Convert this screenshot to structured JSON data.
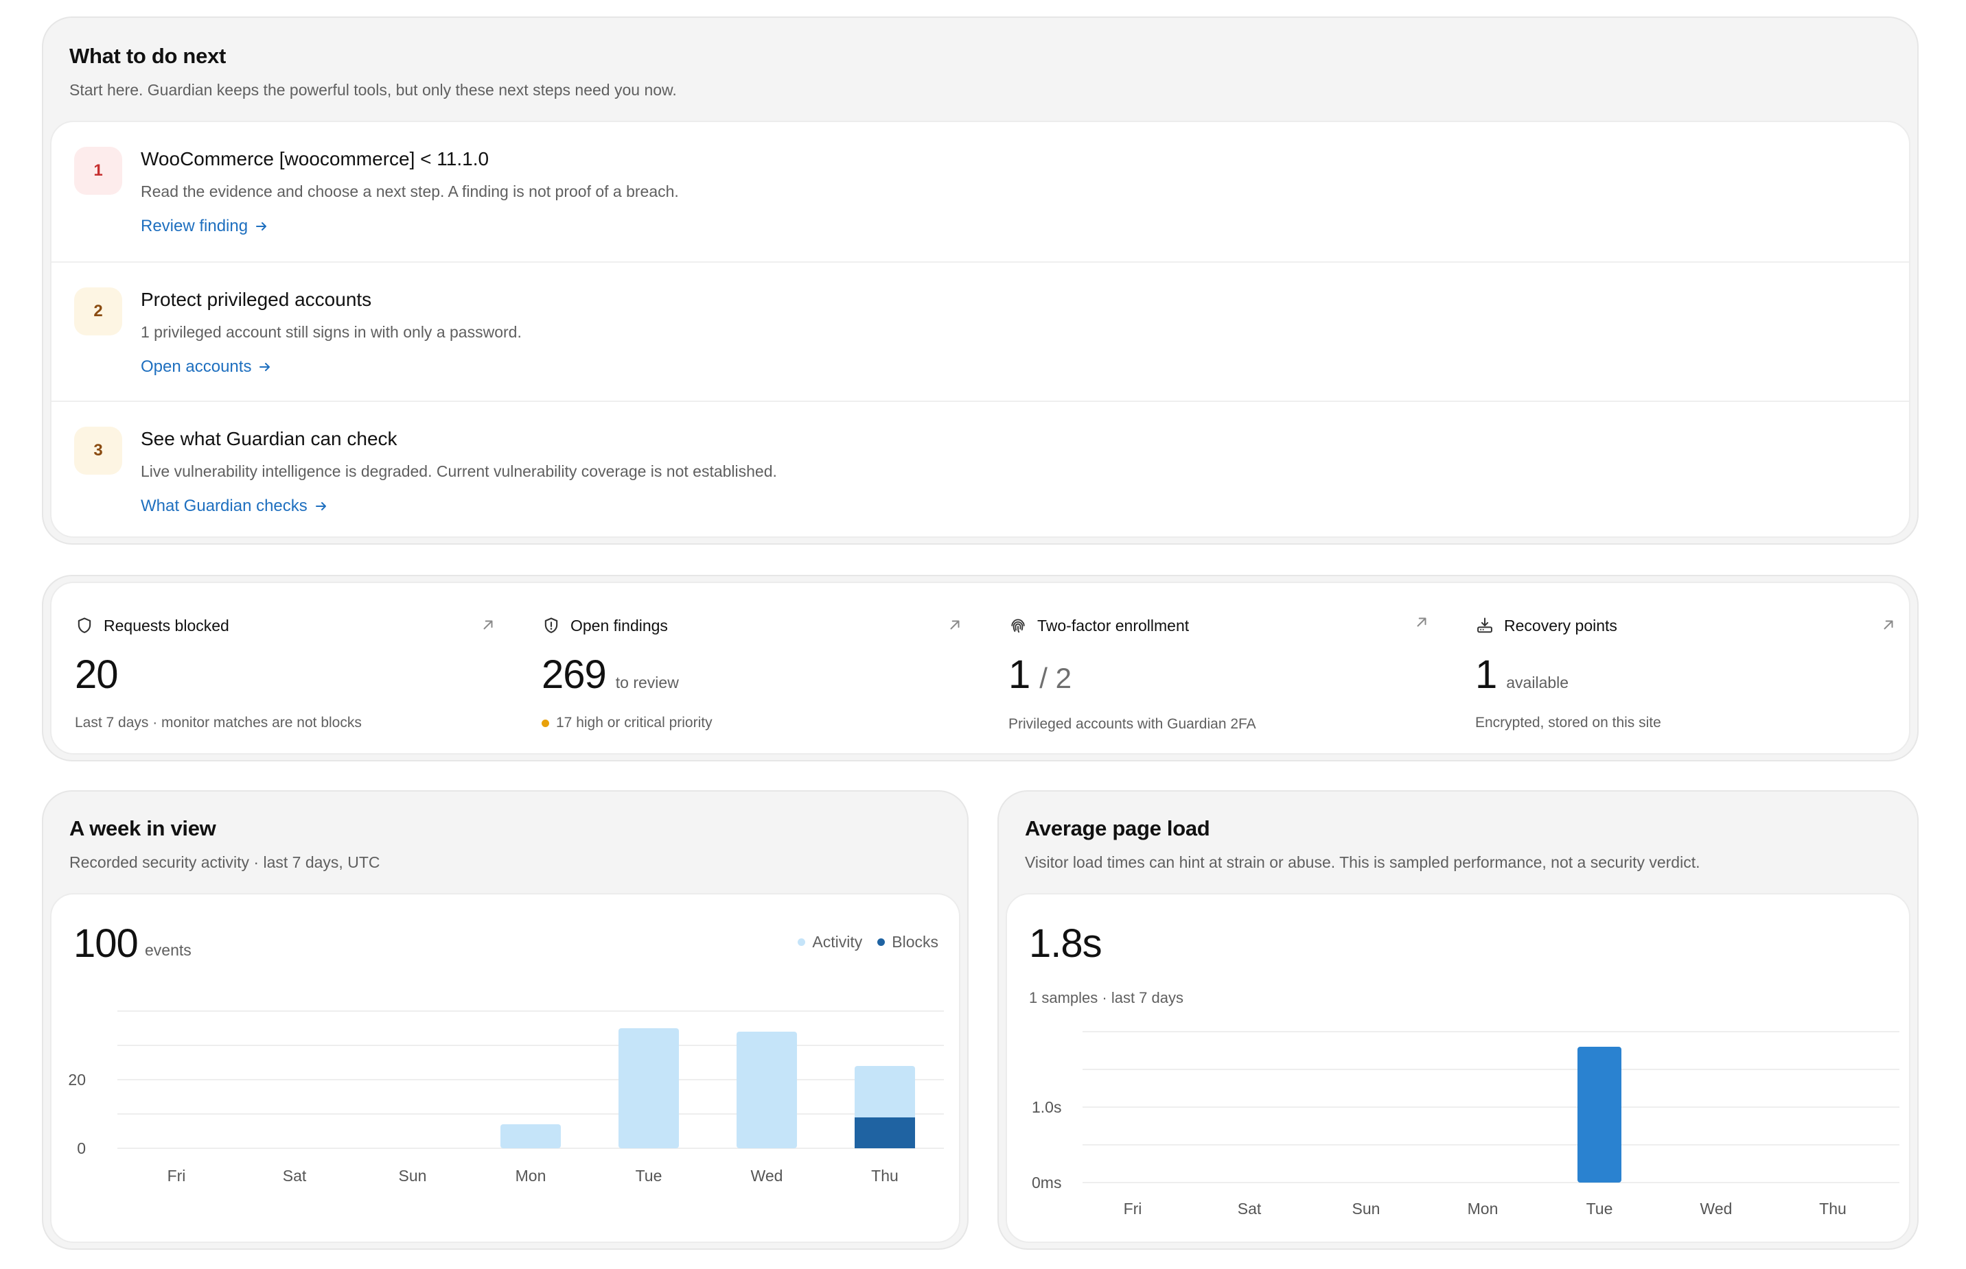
{
  "next_steps": {
    "title": "What to do next",
    "subtitle": "Start here. Guardian keeps the powerful tools, but only these next steps need you now.",
    "items": [
      {
        "number": "1",
        "title": "WooCommerce [woocommerce] < 11.1.0",
        "description": "Read the evidence and choose a next step. A finding is not proof of a breach.",
        "link": "Review finding",
        "severity": "high"
      },
      {
        "number": "2",
        "title": "Protect privileged accounts",
        "description": "1 privileged account still signs in with only a password.",
        "link": "Open accounts",
        "severity": "medium"
      },
      {
        "number": "3",
        "title": "See what Guardian can check",
        "description": "Live vulnerability intelligence is degraded. Current vulnerability coverage is not established.",
        "link": "What Guardian checks",
        "severity": "medium"
      }
    ]
  },
  "stats": [
    {
      "label": "Requests blocked",
      "icon": "shield-icon",
      "value": "20",
      "unit": "",
      "note": "Last 7 days · monitor matches are not blocks"
    },
    {
      "label": "Open findings",
      "icon": "shield-alert-icon",
      "value": "269",
      "unit": "to review",
      "note": "17 high or critical priority"
    },
    {
      "label": "Two-factor enrollment",
      "icon": "fingerprint-icon",
      "value": "1",
      "value_total": "/ 2",
      "unit": "",
      "note": "Privileged accounts with Guardian 2FA"
    },
    {
      "label": "Recovery points",
      "icon": "backup-icon",
      "value": "1",
      "unit": "available",
      "note": "Encrypted, stored on this site"
    }
  ],
  "week": {
    "title": "A week in view",
    "subtitle": "Recorded security activity · last 7 days, UTC",
    "total": "100",
    "total_unit": "events",
    "legend": [
      "Activity",
      "Blocks"
    ]
  },
  "pageload": {
    "title": "Average page load",
    "subtitle": "Visitor load times can hint at strain or abuse. This is sampled performance, not a security verdict.",
    "value": "1.8s",
    "note": "1 samples · last 7 days"
  },
  "chart_data": [
    {
      "type": "bar",
      "categories": [
        "Fri",
        "Sat",
        "Sun",
        "Mon",
        "Tue",
        "Wed",
        "Thu"
      ],
      "series": [
        {
          "name": "Activity",
          "values": [
            0,
            0,
            0,
            7,
            35,
            34,
            24
          ]
        },
        {
          "name": "Blocks",
          "values": [
            0,
            0,
            0,
            0,
            0,
            0,
            9
          ]
        }
      ],
      "stacked": true,
      "yticks": [
        "0",
        "20"
      ],
      "ylim": [
        0,
        40
      ],
      "colors": {
        "Activity": "#c5e4f9",
        "Blocks": "#1f63a2"
      }
    },
    {
      "type": "bar",
      "categories": [
        "Fri",
        "Sat",
        "Sun",
        "Mon",
        "Tue",
        "Wed",
        "Thu"
      ],
      "series": [
        {
          "values": [
            0,
            0,
            0,
            0,
            1.8,
            0,
            0
          ]
        }
      ],
      "yticks": [
        "0ms",
        "1.0s"
      ],
      "ylim": [
        0,
        2.0
      ],
      "colors": {
        "bar": "#2a82d0"
      }
    }
  ]
}
